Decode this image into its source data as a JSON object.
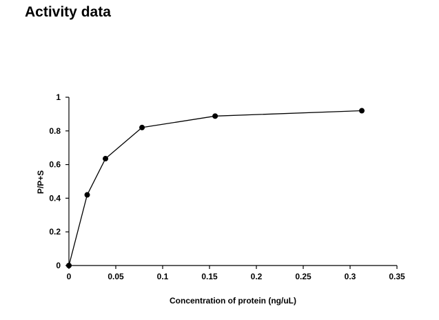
{
  "page_title": "Activity data",
  "chart_data": {
    "type": "line",
    "title": "",
    "xlabel": "Concentration of protein (ng/uL)",
    "ylabel": "P/P+S",
    "xlim": [
      0,
      0.35
    ],
    "ylim": [
      0,
      1
    ],
    "x_ticks": [
      0,
      0.05,
      0.1,
      0.15,
      0.2,
      0.25,
      0.3,
      0.35
    ],
    "x_tick_labels": [
      "0",
      "0.05",
      "0.1",
      "0.15",
      "0.2",
      "0.25",
      "0.3",
      "0.35"
    ],
    "y_ticks": [
      0,
      0.2,
      0.4,
      0.6,
      0.8,
      1
    ],
    "y_tick_labels": [
      "0",
      "0.2",
      "0.4",
      "0.6",
      "0.8",
      "1"
    ],
    "grid": false,
    "legend": "none",
    "series": [
      {
        "x": [
          0,
          0.0195,
          0.039,
          0.078,
          0.156,
          0.3125
        ],
        "y": [
          0,
          0.42,
          0.635,
          0.82,
          0.888,
          0.92
        ],
        "color": "#000000",
        "marker": "circle"
      }
    ]
  }
}
